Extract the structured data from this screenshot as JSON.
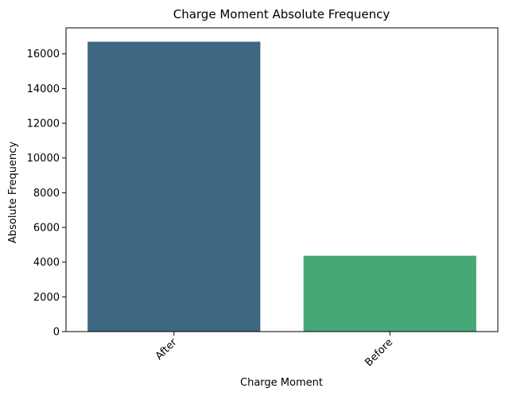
{
  "chart_data": {
    "type": "bar",
    "title": "Charge Moment Absolute Frequency",
    "xlabel": "Charge Moment",
    "ylabel": "Absolute Frequency",
    "categories": [
      "After",
      "Before"
    ],
    "values": [
      16700,
      4370
    ],
    "colors": [
      "#3e6781",
      "#46a777"
    ],
    "ylim": [
      0,
      17500
    ],
    "yticks": [
      0,
      2000,
      4000,
      6000,
      8000,
      10000,
      12000,
      14000,
      16000
    ],
    "xtick_rotation": 45,
    "grid": false,
    "legend": "none"
  }
}
